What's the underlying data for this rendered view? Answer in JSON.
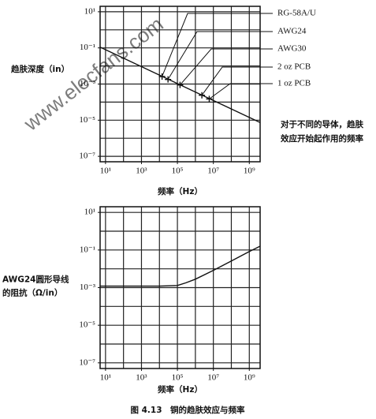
{
  "chart_data": [
    {
      "type": "line",
      "xscale": "log",
      "yscale": "log",
      "grid": true,
      "y_label": [
        "趋肤深度（in）"
      ],
      "x_label": "频率（Hz）",
      "xlim": [
        5,
        4000000000
      ],
      "ylim": [
        5e-08,
        20
      ],
      "xticks": [
        {
          "value": 10,
          "label": "10¹"
        },
        {
          "value": 1000,
          "label": "10³"
        },
        {
          "value": 100000,
          "label": "10⁵"
        },
        {
          "value": 10000000,
          "label": "10⁷"
        },
        {
          "value": 1000000000,
          "label": "10⁹"
        }
      ],
      "yticks": [
        {
          "value": 10,
          "label": "10¹"
        },
        {
          "value": 0.1,
          "label": "10⁻¹"
        },
        {
          "value": 0.001,
          "label": "10⁻³"
        },
        {
          "value": 1e-05,
          "label": "10⁻⁵"
        },
        {
          "value": 1e-07,
          "label": "10⁻⁷"
        }
      ],
      "xgrid": [
        10,
        100,
        1000,
        10000,
        100000,
        1000000,
        10000000,
        100000000,
        1000000000
      ],
      "ygrid": [
        10,
        1,
        0.1,
        0.01,
        0.001,
        0.0001,
        1e-05,
        1e-06,
        1e-07
      ],
      "series": [
        {
          "color": "#111111",
          "x": [
            5,
            4000000000
          ],
          "values": [
            0.11,
            7.4e-06
          ]
        }
      ],
      "annotations": [
        {
          "label": "RG-58A/U",
          "x": 14000,
          "y": 0.0026
        },
        {
          "label": "AWG24",
          "x": 30000,
          "y": 0.0018
        },
        {
          "label": "AWG30",
          "x": 140000,
          "y": 0.00089
        },
        {
          "label": "2 oz PCB",
          "x": 2300000,
          "y": 0.00024
        },
        {
          "label": "1 oz PCB",
          "x": 5900000,
          "y": 0.00015
        }
      ],
      "note": [
        "对于不同的导体，趋肤",
        "效应开始起作用的频率"
      ]
    },
    {
      "type": "line",
      "xscale": "log",
      "yscale": "log",
      "grid": true,
      "y_label": [
        "AWG24圆形导线",
        "的阻抗（Ω/in）"
      ],
      "x_label": "频率（Hz）",
      "xlim": [
        5,
        4000000000
      ],
      "ylim": [
        5e-08,
        20
      ],
      "xticks": [
        {
          "value": 10,
          "label": "10¹"
        },
        {
          "value": 1000,
          "label": "10³"
        },
        {
          "value": 100000,
          "label": "10⁵"
        },
        {
          "value": 10000000,
          "label": "10⁷"
        },
        {
          "value": 1000000000,
          "label": "10⁹"
        }
      ],
      "yticks": [
        {
          "value": 10,
          "label": "10¹"
        },
        {
          "value": 0.1,
          "label": "10⁻¹"
        },
        {
          "value": 0.001,
          "label": "10⁻³"
        },
        {
          "value": 1e-05,
          "label": "10⁻⁵"
        },
        {
          "value": 1e-07,
          "label": "10⁻⁷"
        }
      ],
      "xgrid": [
        10,
        100,
        1000,
        10000,
        100000,
        1000000,
        10000000,
        100000000,
        1000000000
      ],
      "ygrid": [
        10,
        1,
        0.1,
        0.01,
        0.001,
        0.0001,
        1e-05,
        1e-06,
        1e-07
      ],
      "series": [
        {
          "color": "#111111",
          "x": [
            5,
            10000,
            100000,
            300000,
            1000000,
            10000000,
            100000000,
            1000000000,
            4000000000
          ],
          "values": [
            0.0012,
            0.0012,
            0.0013,
            0.0018,
            0.0028,
            0.0083,
            0.026,
            0.083,
            0.16
          ]
        }
      ]
    }
  ],
  "caption": "图 4.13　铜的趋肤效应与频率",
  "watermark": "www.elecfans.com"
}
